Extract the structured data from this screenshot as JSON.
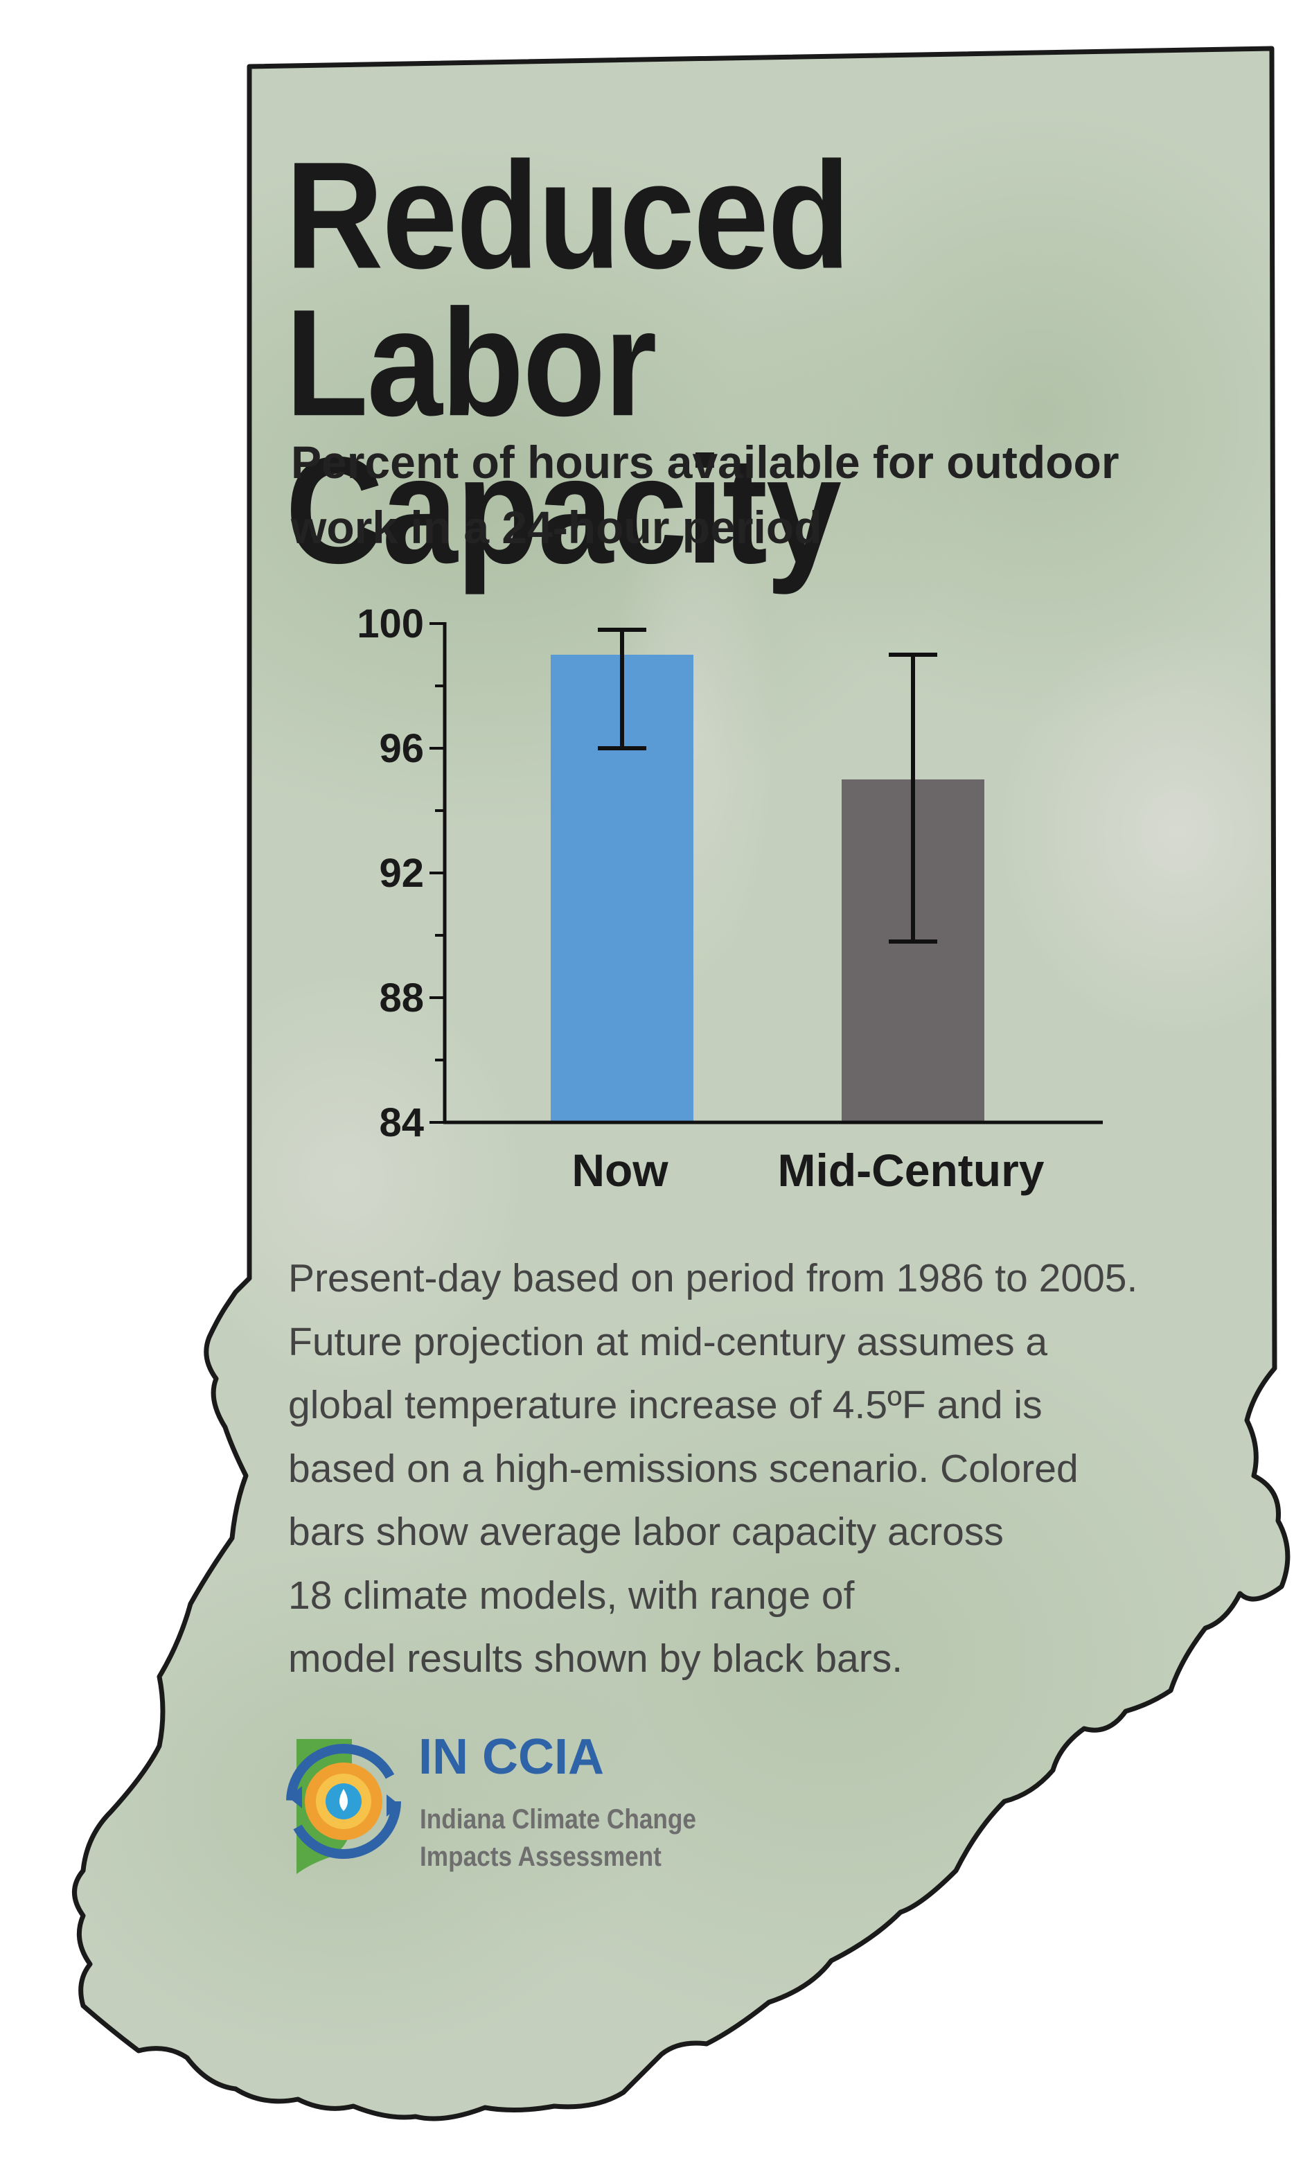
{
  "title_lines": [
    "Reduced Labor",
    "Capacity"
  ],
  "subtitle_lines": [
    "Percent of hours available for outdoor",
    "work in a 24-hour period"
  ],
  "colors": {
    "map_fill": "#c4d0bd",
    "map_outline": "#1a1a1a",
    "now_bar": "#5b9bd5",
    "mid_century_bar": "#6b6668",
    "note_text": "#444444",
    "logo_blue": "#2f63a8",
    "logo_green": "#5aa845",
    "logo_orange": "#f0a030"
  },
  "chart_data": {
    "type": "bar",
    "title": "Percent of hours available for outdoor work in a 24-hour period",
    "xlabel": "",
    "ylabel": "",
    "categories": [
      "Now",
      "Mid-Century"
    ],
    "values": [
      99.0,
      95.0
    ],
    "error_bars": [
      {
        "low": 96.0,
        "high": 99.8
      },
      {
        "low": 89.8,
        "high": 99.0
      }
    ],
    "bar_colors": [
      "#5b9bd5",
      "#6b6668"
    ],
    "ylim": [
      84,
      100
    ],
    "yticks": [
      84,
      88,
      92,
      96,
      100
    ],
    "grid": false,
    "legend": "none"
  },
  "note_lines": [
    "Present-day based on period from 1986 to 2005.",
    "Future projection at mid-century assumes a",
    "global temperature increase of 4.5ºF and is",
    "based on a high-emissions scenario. Colored",
    "bars show average labor capacity across",
    "18 climate models, with range of",
    "model results shown by black bars."
  ],
  "logo": {
    "title": "IN CCIA",
    "line1": "Indiana Climate Change",
    "line2": "Impacts Assessment",
    "icon": "sun-water-arrows-icon"
  }
}
